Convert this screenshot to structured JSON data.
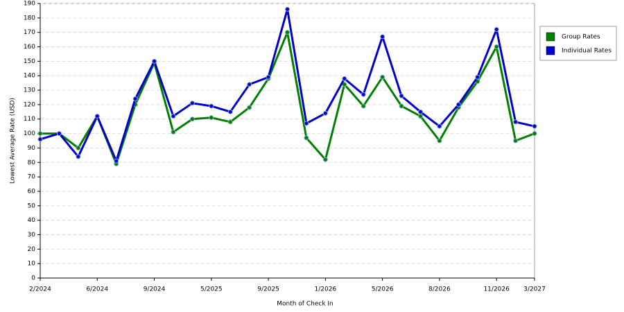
{
  "chart_data": {
    "type": "line",
    "x_label": "Month of Check In",
    "y_label": "Lowest Average Rate (USD)",
    "categories": [
      "2/2024",
      null,
      null,
      "6/2024",
      null,
      null,
      "9/2024",
      null,
      null,
      "5/2025",
      null,
      null,
      "9/2025",
      null,
      null,
      "1/2026",
      null,
      null,
      "5/2026",
      null,
      null,
      "8/2026",
      null,
      null,
      "11/2026",
      null,
      "3/2027"
    ],
    "series": [
      {
        "name": "Group Rates",
        "color": "#008000",
        "values": [
          100,
          100,
          90,
          112,
          79,
          120,
          149,
          101,
          110,
          111,
          108,
          118,
          138,
          170,
          97,
          82,
          134,
          119,
          139,
          119,
          112,
          95,
          118,
          136,
          160,
          95,
          100
        ]
      },
      {
        "name": "Individual Rates",
        "color": "#0000cc",
        "values": [
          96,
          100,
          84,
          112,
          81,
          124,
          150,
          112,
          121,
          119,
          115,
          134,
          139,
          186,
          107,
          114,
          138,
          127,
          167,
          126,
          115,
          105,
          120,
          139,
          172,
          108,
          105
        ]
      }
    ],
    "ylim": [
      0,
      190
    ],
    "yticks": [
      0,
      10,
      20,
      30,
      40,
      50,
      60,
      70,
      80,
      90,
      100,
      110,
      120,
      130,
      140,
      150,
      160,
      170,
      180,
      190
    ],
    "grid": true,
    "legend": "right"
  }
}
